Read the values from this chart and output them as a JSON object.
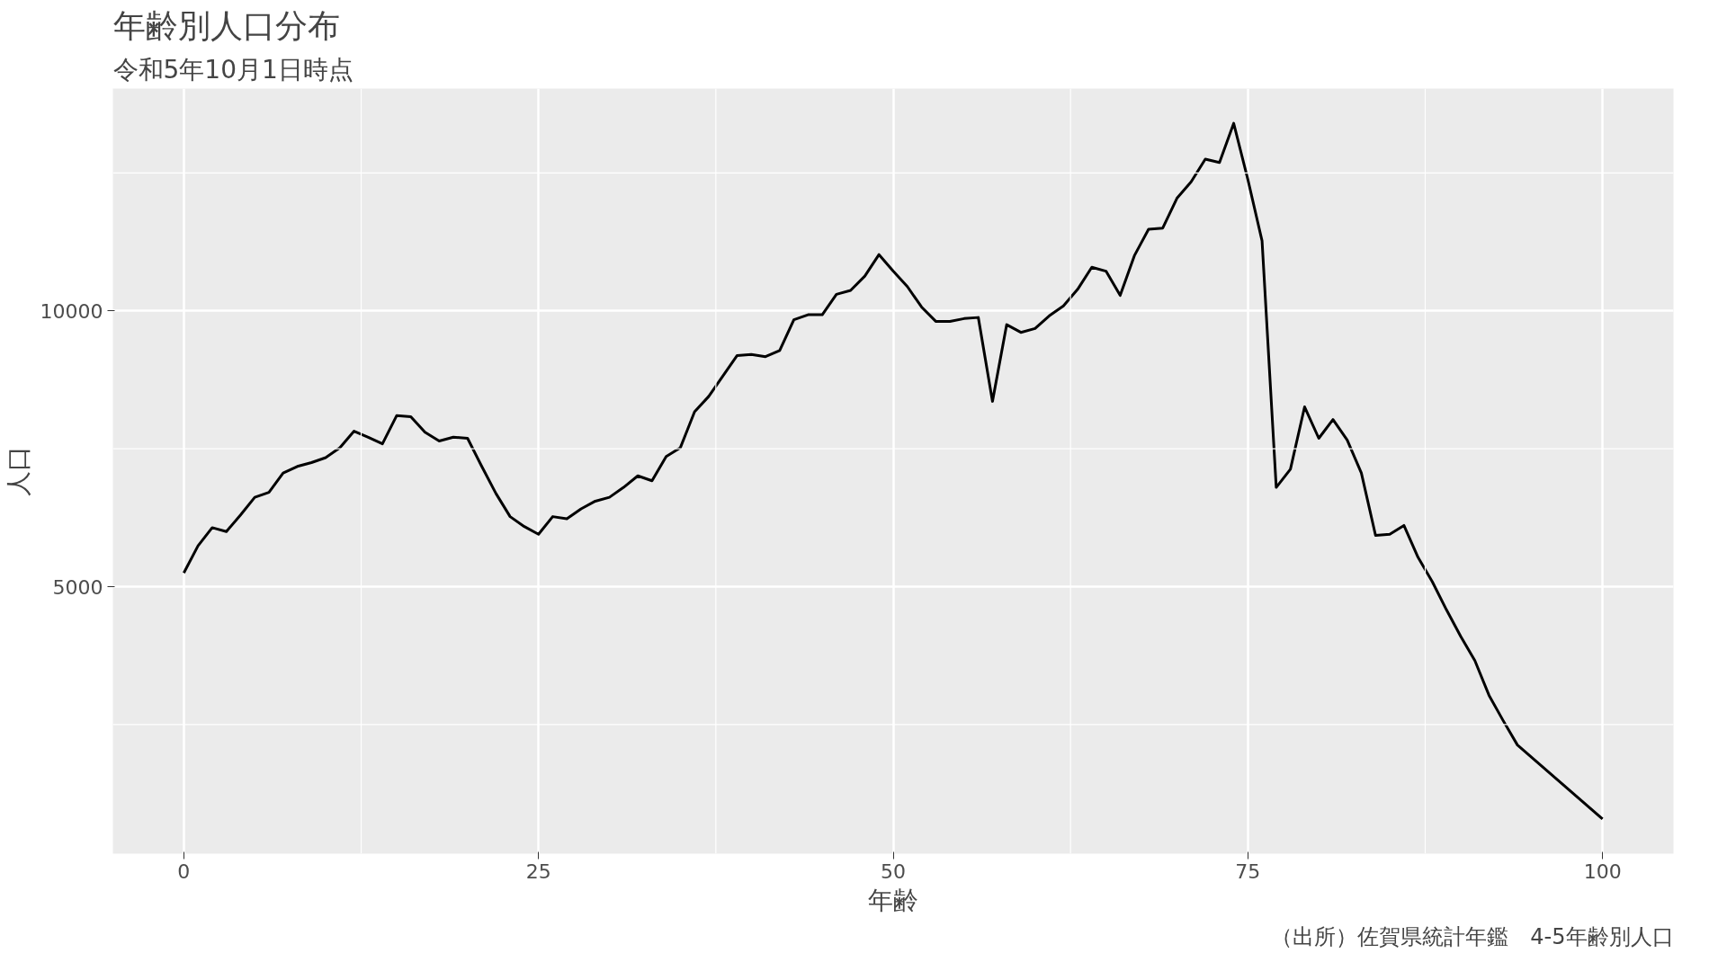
{
  "chart_data": {
    "type": "line",
    "title": "年齢別人口分布",
    "subtitle": "令和5年10月1日時点",
    "xlabel": "年齢",
    "ylabel": "人口",
    "annotations": [
      "（出所）佐賀県統計年鑑　4-5年齢別人口"
    ],
    "x": [
      0,
      1,
      2,
      3,
      4,
      5,
      6,
      7,
      8,
      9,
      10,
      11,
      12,
      13,
      14,
      15,
      16,
      17,
      18,
      19,
      20,
      21,
      22,
      23,
      24,
      25,
      26,
      27,
      28,
      29,
      30,
      31,
      32,
      33,
      34,
      35,
      36,
      37,
      38,
      39,
      40,
      41,
      42,
      43,
      44,
      45,
      46,
      47,
      48,
      49,
      50,
      51,
      52,
      53,
      54,
      55,
      56,
      57,
      58,
      59,
      60,
      61,
      62,
      63,
      64,
      65,
      66,
      67,
      68,
      69,
      70,
      71,
      72,
      73,
      74,
      75,
      76,
      77,
      78,
      79,
      80,
      81,
      82,
      83,
      84,
      85,
      86,
      87,
      88,
      89,
      90,
      91,
      92,
      93,
      94,
      100
    ],
    "series": [
      {
        "color": "#000000",
        "values": [
          5250,
          5740,
          6070,
          6000,
          6300,
          6620,
          6710,
          7060,
          7180,
          7250,
          7340,
          7520,
          7820,
          7710,
          7590,
          8100,
          8080,
          7800,
          7640,
          7710,
          7690,
          7180,
          6690,
          6270,
          6090,
          5950,
          6270,
          6230,
          6410,
          6550,
          6620,
          6800,
          7010,
          6920,
          7360,
          7520,
          8170,
          8450,
          8820,
          9190,
          9210,
          9170,
          9280,
          9840,
          9930,
          9930,
          10300,
          10370,
          10630,
          11020,
          10720,
          10440,
          10070,
          9810,
          9810,
          9860,
          9880,
          8360,
          9750,
          9610,
          9680,
          9910,
          10090,
          10390,
          10790,
          10720,
          10280,
          11000,
          11480,
          11500,
          12040,
          12340,
          12750,
          12690,
          13400,
          12380,
          11270,
          6800,
          7130,
          8260,
          7690,
          8030,
          7660,
          7060,
          5930,
          5950,
          6110,
          5530,
          5090,
          4580,
          4100,
          3660,
          3030,
          2570,
          2130,
          790
        ]
      }
    ],
    "xlim": [
      -5,
      105
    ],
    "xticks": [
      0,
      25,
      50,
      75,
      100,
      {
        "value": 12.5,
        "label": null
      },
      {
        "value": 37.5,
        "label": null
      },
      {
        "value": 62.5,
        "label": null
      },
      {
        "value": 87.5,
        "label": null
      }
    ],
    "ylim": [
      160,
      14030
    ],
    "yticks": [
      5000,
      10000,
      {
        "value": 2500,
        "label": null
      },
      {
        "value": 7500,
        "label": null
      },
      {
        "value": 12500,
        "label": null
      }
    ],
    "grid": true,
    "marker": "none",
    "line_style": "solid"
  }
}
